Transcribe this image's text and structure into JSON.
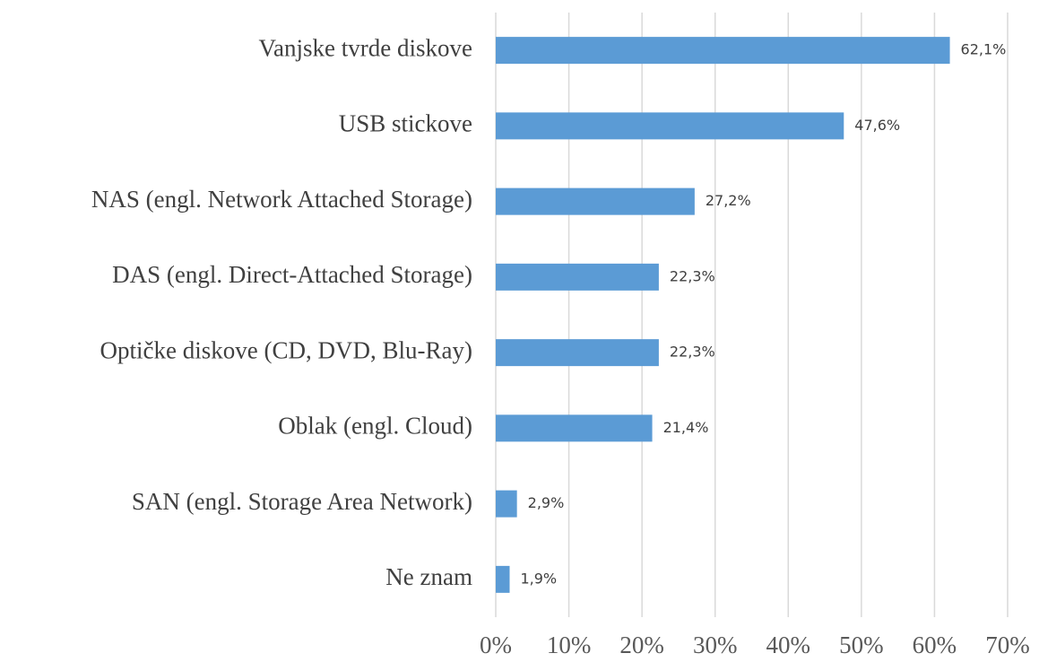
{
  "chart_data": {
    "type": "barh",
    "categories": [
      "Vanjske tvrde diskove",
      "USB stickove",
      "NAS (engl. Network Attached Storage)",
      "DAS (engl. Direct-Attached Storage)",
      "Optičke diskove (CD, DVD, Blu-Ray)",
      "Oblak (engl. Cloud)",
      "SAN (engl. Storage Area Network)",
      "Ne znam"
    ],
    "values": [
      62.1,
      47.6,
      27.2,
      22.3,
      22.3,
      21.4,
      2.9,
      1.9
    ],
    "value_labels": [
      "62,1%",
      "47,6%",
      "27,2%",
      "22,3%",
      "22,3%",
      "21,4%",
      "2,9%",
      "1,9%"
    ],
    "color": "#5b9bd5",
    "xlim": [
      0,
      70
    ],
    "xticks": [
      {
        "value": 0,
        "label": "0%"
      },
      {
        "value": 10,
        "label": "10%"
      },
      {
        "value": 20,
        "label": "20%"
      },
      {
        "value": 30,
        "label": "30%"
      },
      {
        "value": 40,
        "label": "40%"
      },
      {
        "value": 50,
        "label": "50%"
      },
      {
        "value": 60,
        "label": "60%"
      },
      {
        "value": 70,
        "label": "70%"
      }
    ],
    "grid": true
  }
}
